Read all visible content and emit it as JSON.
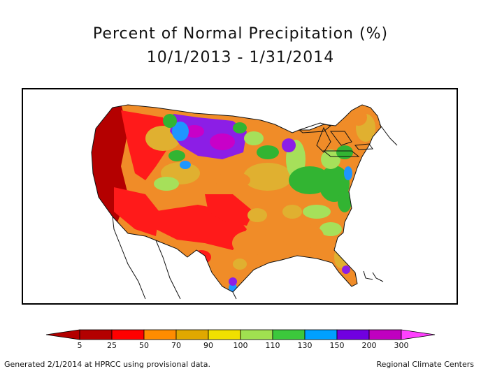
{
  "title_line1": "Percent of Normal Precipitation (%)",
  "title_line2": "10/1/2013 - 1/31/2014",
  "legend": {
    "ticks": [
      "5",
      "25",
      "50",
      "70",
      "90",
      "100",
      "110",
      "130",
      "150",
      "200",
      "300"
    ],
    "colors": [
      "#b30000",
      "#ff0000",
      "#ff8c00",
      "#e0a800",
      "#f0e000",
      "#a0e050",
      "#3cc83c",
      "#00a0ff",
      "#7000e0",
      "#c000c0",
      "#ff40ff"
    ]
  },
  "footer_left": "Generated 2/1/2014 at HPRCC using provisional data.",
  "footer_right": "Regional Climate Centers",
  "palette": {
    "dark_red": "#b40000",
    "red": "#ff1a1a",
    "orange": "#f08c28",
    "gold": "#e0b030",
    "yellow": "#f0e000",
    "lime": "#a6e05a",
    "green": "#32b432",
    "blue": "#1e96ff",
    "purple": "#8c1ee6",
    "magenta": "#c800c8"
  }
}
